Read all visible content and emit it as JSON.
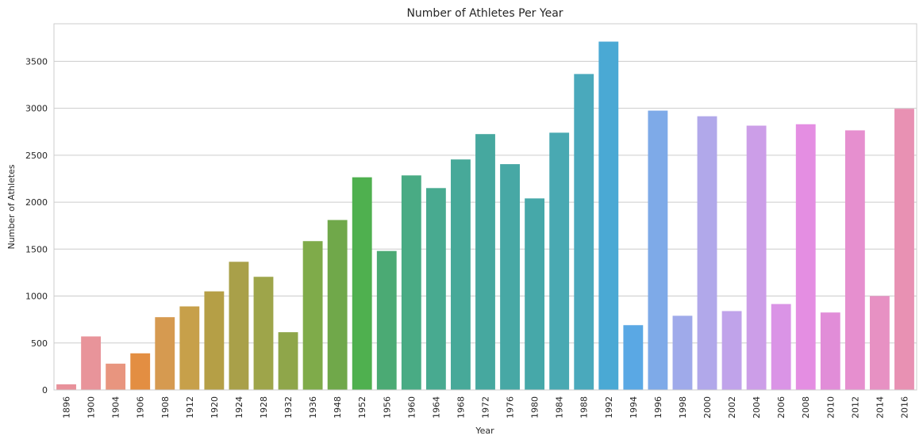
{
  "chart_data": {
    "type": "bar",
    "title": "Number of Athletes Per Year",
    "xlabel": "Year",
    "ylabel": "Number of Athletes",
    "ylim": [
      0,
      3900
    ],
    "yticks": [
      0,
      500,
      1000,
      1500,
      2000,
      2500,
      3000,
      3500
    ],
    "grid": true,
    "categories": [
      "1896",
      "1900",
      "1904",
      "1906",
      "1908",
      "1912",
      "1920",
      "1924",
      "1928",
      "1932",
      "1936",
      "1948",
      "1952",
      "1956",
      "1960",
      "1964",
      "1968",
      "1972",
      "1976",
      "1980",
      "1984",
      "1988",
      "1992",
      "1994",
      "1996",
      "1998",
      "2000",
      "2002",
      "2004",
      "2006",
      "2008",
      "2010",
      "2012",
      "2014",
      "2016"
    ],
    "values": [
      60,
      570,
      280,
      390,
      775,
      890,
      1050,
      1365,
      1205,
      615,
      1585,
      1810,
      2265,
      1480,
      2285,
      2150,
      2455,
      2725,
      2405,
      2040,
      2740,
      3365,
      3710,
      690,
      2975,
      790,
      2915,
      840,
      2815,
      915,
      2830,
      825,
      2765,
      1000,
      2995
    ],
    "colors": [
      "#e8919a",
      "#e8949a",
      "#e8957f",
      "#e38e42",
      "#d69a50",
      "#c7a04a",
      "#b59f46",
      "#a9a049",
      "#9ea54a",
      "#8fa64a",
      "#7fab4a",
      "#70a84a",
      "#4fb04f",
      "#4baa74",
      "#49ab84",
      "#48aa90",
      "#47a999",
      "#46a89f",
      "#47a8a5",
      "#46a8a9",
      "#49a9b2",
      "#4aa9bc",
      "#4aa9d4",
      "#5aa8e4",
      "#7eaae8",
      "#9faaea",
      "#b1a8ea",
      "#c0a3ea",
      "#cc9ee8",
      "#da94e6",
      "#e48ee2",
      "#e18dd8",
      "#e68fcf",
      "#e791c3",
      "#e891b3"
    ]
  }
}
